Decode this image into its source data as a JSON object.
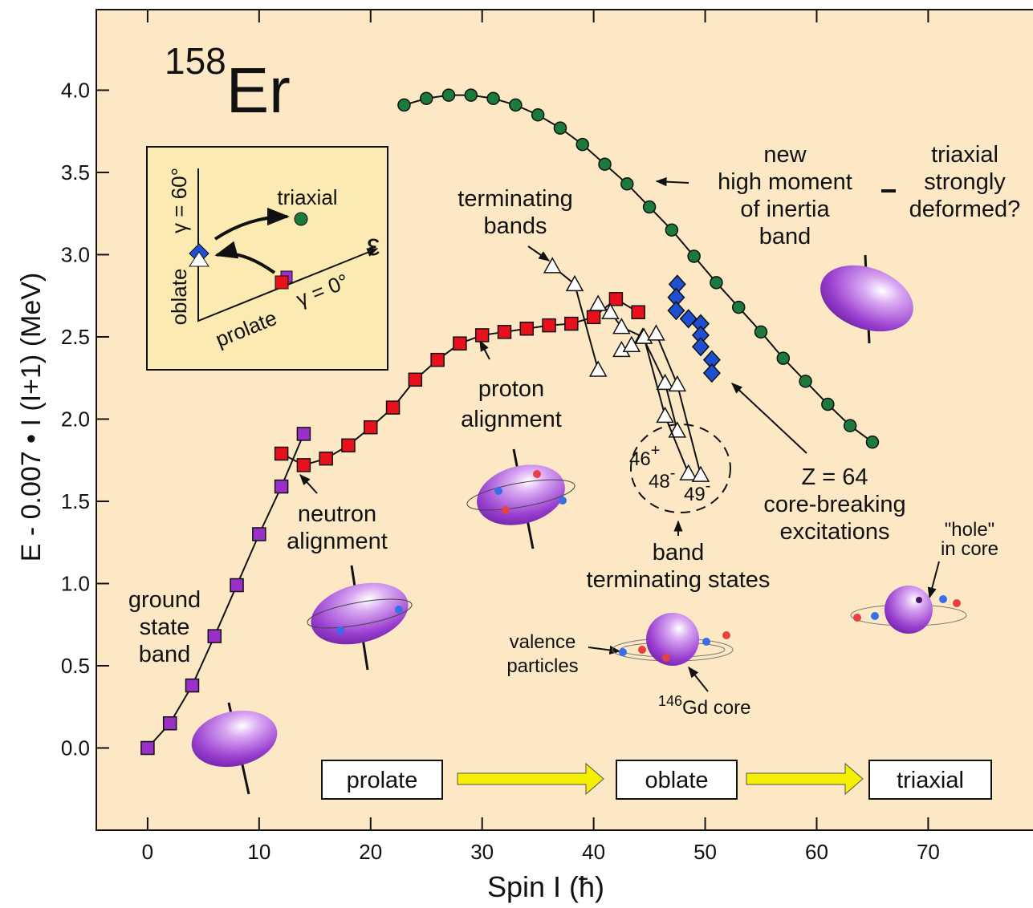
{
  "chart_data": {
    "type": "line",
    "title": {
      "mass": "158",
      "element": "Er"
    },
    "x_label": "Spin I (ħ)",
    "y_label": "E - 0.007 • I (I+1) (MeV)",
    "xlim": [
      -4.6,
      79.4
    ],
    "xticks": [
      0,
      10,
      20,
      30,
      40,
      50,
      60,
      70
    ],
    "ylim": [
      -0.5,
      4.49
    ],
    "yticks": [
      {
        "value": 0,
        "label": "0.0"
      },
      0.5,
      {
        "value": 1,
        "label": "1.0"
      },
      1.5,
      {
        "value": 2,
        "label": "2.0"
      },
      2.5,
      {
        "value": 3,
        "label": "3.0"
      },
      3.5,
      {
        "value": 4,
        "label": "4.0"
      }
    ],
    "series": [
      {
        "color": "#9a2fc9",
        "marker": "square",
        "line": true,
        "x": [
          0,
          2,
          4,
          6,
          8,
          10,
          12,
          14
        ],
        "values": [
          0,
          0.15,
          0.38,
          0.68,
          0.99,
          1.3,
          1.59,
          1.91
        ]
      },
      {
        "color": "#e8101a",
        "marker": "square",
        "line": true,
        "x": [
          12,
          14,
          16,
          18,
          20,
          22,
          24,
          26,
          28,
          30,
          32,
          34,
          36,
          38,
          40,
          42,
          44
        ],
        "values": [
          1.79,
          1.72,
          1.76,
          1.84,
          1.95,
          2.07,
          2.24,
          2.36,
          2.46,
          2.51,
          2.53,
          2.55,
          2.57,
          2.58,
          2.62,
          2.73,
          2.65
        ]
      },
      {
        "color": "#1b7a3c",
        "marker": "circle",
        "line": true,
        "x": [
          23,
          25,
          27,
          29,
          31,
          33,
          35,
          37,
          39,
          41,
          43,
          45,
          47,
          49,
          51,
          53,
          55,
          57,
          59,
          61,
          63,
          65
        ],
        "values": [
          3.91,
          3.95,
          3.97,
          3.97,
          3.95,
          3.91,
          3.85,
          3.77,
          3.67,
          3.55,
          3.43,
          3.29,
          3.15,
          2.99,
          2.83,
          2.68,
          2.53,
          2.37,
          2.23,
          2.09,
          1.96,
          1.86
        ]
      },
      {
        "color": "#1f4fd1",
        "marker": "diamond",
        "line": false,
        "x": [
          47.5,
          47.4,
          47.4,
          48.5,
          49.6,
          49.6,
          49.6,
          50.6,
          50.6
        ],
        "values": [
          2.82,
          2.74,
          2.66,
          2.61,
          2.58,
          2.51,
          2.44,
          2.36,
          2.28
        ]
      },
      {
        "color": "#ffffff",
        "marker": "triangle",
        "line": true,
        "x": [
          36.3,
          38.3,
          40.4
        ],
        "values": [
          2.93,
          2.82,
          2.3
        ]
      },
      {
        "color": "#ffffff",
        "marker": "triangle",
        "line": true,
        "x": [
          40.4,
          41.5,
          42.5,
          44.4,
          46.4,
          47.5
        ],
        "values": [
          2.7,
          2.65,
          2.56,
          2.5,
          2.22,
          1.93
        ]
      },
      {
        "color": "#ffffff",
        "marker": "triangle",
        "line": true,
        "x": [
          42.5,
          43.4,
          44.5,
          46.4,
          48.5
        ],
        "values": [
          2.42,
          2.45,
          2.5,
          2.02,
          1.67
        ]
      },
      {
        "color": "#ffffff",
        "marker": "triangle",
        "line": true,
        "x": [
          45.6,
          47.5,
          49.6
        ],
        "values": [
          2.52,
          2.21,
          1.66
        ]
      }
    ],
    "annotations": [
      {
        "lines": [
          "new",
          "high moment",
          "of inertia",
          "band"
        ]
      },
      {
        "lines": [
          "triaxial",
          "strongly",
          "deformed?"
        ]
      },
      {
        "lines": [
          "terminating",
          "bands"
        ]
      },
      {
        "lines": [
          "proton",
          "alignment"
        ]
      },
      {
        "lines": [
          "neutron",
          "alignment"
        ]
      },
      {
        "lines": [
          "ground",
          "state",
          "band"
        ]
      },
      {
        "lines": [
          "Z = 64",
          "core-breaking",
          "excitations"
        ]
      },
      {
        "lines": [
          "band",
          "terminating states"
        ]
      },
      {
        "lines": [
          "valence",
          "particles"
        ]
      },
      {
        "lines": [
          "\"hole\"",
          "in core"
        ]
      }
    ],
    "spin_labels": [
      {
        "spin": "46",
        "parity": "+"
      },
      {
        "spin": "48",
        "parity": "-"
      },
      {
        "spin": "49",
        "parity": "-"
      }
    ],
    "core_label": {
      "mass": "146",
      "text": "Gd core"
    },
    "inset_labels": [
      "triaxial",
      "oblate",
      "γ = 60°",
      "prolate",
      "γ = 0°",
      "ε"
    ],
    "shape_sequence": [
      "prolate",
      "oblate",
      "triaxial"
    ]
  }
}
